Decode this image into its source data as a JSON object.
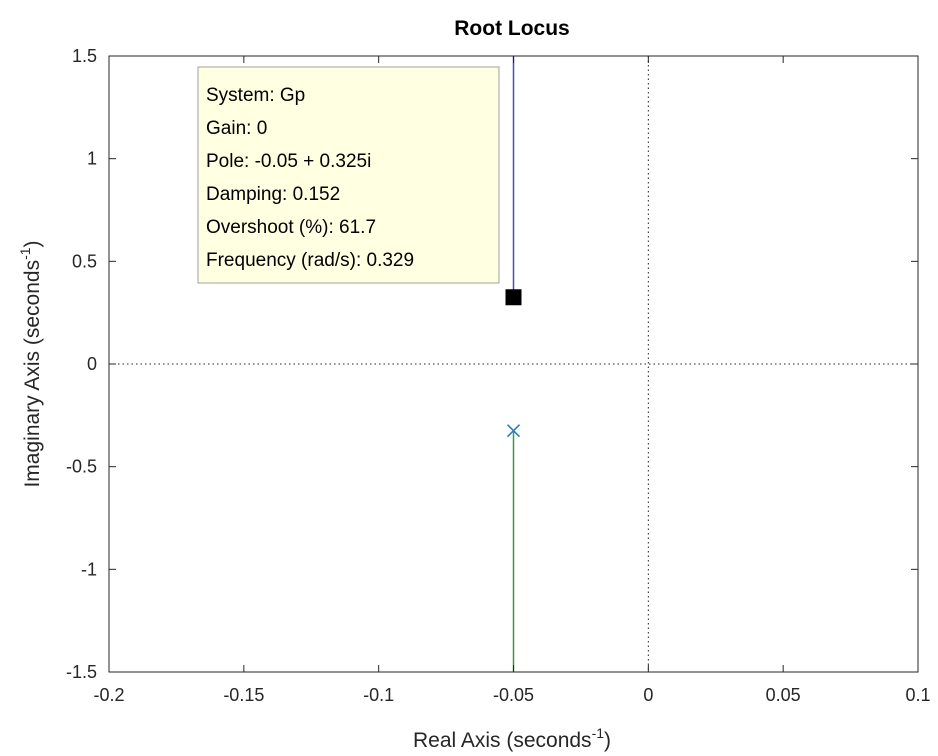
{
  "chart_data": {
    "type": "line",
    "title": "Root Locus",
    "xlabel": {
      "base": "Real Axis (seconds",
      "sup": "-1",
      "end": ")"
    },
    "ylabel": {
      "base": "Imaginary Axis (seconds",
      "sup": "-1",
      "end": ")"
    },
    "xlim": [
      -0.2,
      0.1
    ],
    "ylim": [
      -1.5,
      1.5
    ],
    "x_ticks": [
      -0.2,
      -0.15,
      -0.1,
      -0.05,
      0,
      0.05,
      0.1
    ],
    "x_tick_labels": [
      "-0.2",
      "-0.15",
      "-0.1",
      "-0.05",
      "0",
      "0.05",
      "0.1"
    ],
    "y_ticks": [
      -1.5,
      -1,
      -0.5,
      0,
      0.5,
      1,
      1.5
    ],
    "y_tick_labels": [
      "-1.5",
      "-1",
      "-0.5",
      "0",
      "0.5",
      "1",
      "1.5"
    ],
    "grid": false,
    "reference_lines": {
      "x": 0,
      "y": 0,
      "style": "dotted"
    },
    "series": [
      {
        "color": "#4d4dbf",
        "x": [
          -0.05,
          -0.05
        ],
        "y": [
          0.325,
          1.5
        ]
      },
      {
        "color": "#3c9a3c",
        "x": [
          -0.05,
          -0.05
        ],
        "y": [
          -0.325,
          -1.5
        ]
      }
    ],
    "poles": [
      {
        "x": -0.05,
        "y": 0.325,
        "color": "#4d4dbf"
      },
      {
        "x": -0.05,
        "y": -0.325,
        "color": "#2f7fb5"
      }
    ],
    "datatip": {
      "point": {
        "x": -0.05,
        "y": 0.325
      },
      "lines": [
        "System: Gp",
        "Gain: 0",
        "Pole: -0.05 + 0.325i",
        "Damping: 0.152",
        "Overshoot (%): 61.7",
        "Frequency (rad/s): 0.329"
      ]
    }
  }
}
